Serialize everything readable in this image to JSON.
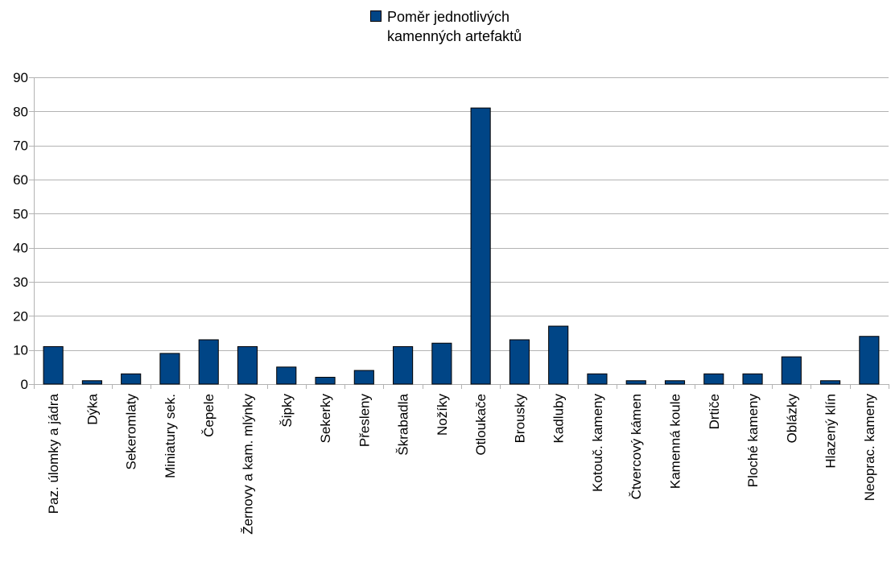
{
  "chart_data": {
    "type": "bar",
    "title": "",
    "xlabel": "",
    "ylabel": "",
    "ylim": [
      0,
      90
    ],
    "yticks": [
      0,
      10,
      20,
      30,
      40,
      50,
      60,
      70,
      80,
      90
    ],
    "grid": true,
    "legend_position": "top",
    "categories": [
      "Paz. úlomky a jádra",
      "Dýka",
      "Sekeromlaty",
      "Miniatury sek.",
      "Čepele",
      "Žernovy a kam. mlýnky",
      "Šipky",
      "Sekerky",
      "Přesleny",
      "Škrabadla",
      "Nožíky",
      "Otloukače",
      "Brousky",
      "Kadluby",
      "Kotouč. kameny",
      "Čtvercový kámen",
      "Kamenná koule",
      "Drtiče",
      "Ploché kameny",
      "Oblázky",
      "Hlazený klín",
      "Neoprac. kameny"
    ],
    "series": [
      {
        "name": "Poměr jednotlivých kamenných artefaktů",
        "color": "#004586",
        "values": [
          11,
          1,
          3,
          9,
          13,
          11,
          5,
          2,
          4,
          11,
          12,
          81,
          13,
          17,
          3,
          1,
          1,
          3,
          3,
          8,
          1,
          14
        ]
      }
    ]
  },
  "legend": {
    "label": "Poměr jednotlivých kamenných artefaktů"
  }
}
